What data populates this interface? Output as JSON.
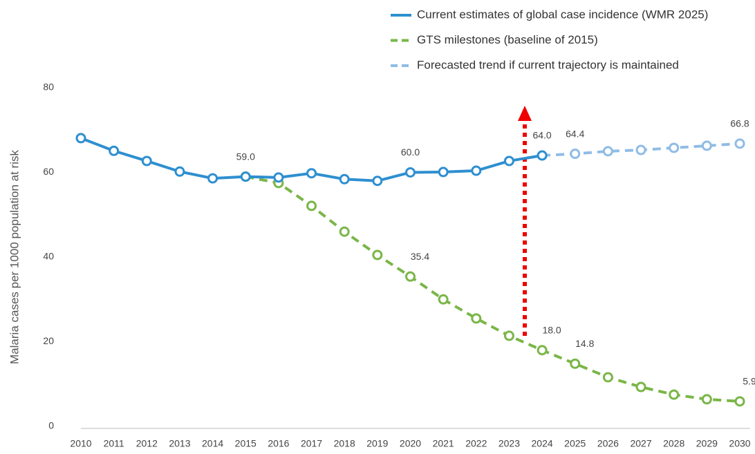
{
  "chart_data": {
    "type": "line",
    "ylabel": "Malaria cases per 1000 population at risk",
    "x": [
      2010,
      2011,
      2012,
      2013,
      2014,
      2015,
      2016,
      2017,
      2018,
      2019,
      2020,
      2021,
      2022,
      2023,
      2024,
      2025,
      2026,
      2027,
      2028,
      2029,
      2030
    ],
    "xlim": [
      2010,
      2030
    ],
    "xticks": [
      2010,
      2011,
      2012,
      2013,
      2014,
      2015,
      2016,
      2017,
      2018,
      2019,
      2020,
      2021,
      2022,
      2023,
      2024,
      2025,
      2026,
      2027,
      2028,
      2029,
      2030
    ],
    "ylim": [
      0,
      80
    ],
    "yticks": [
      0,
      20,
      40,
      60,
      80
    ],
    "grid": false,
    "legend": "top-right",
    "series": [
      {
        "name": "Current estimates of global case incidence (WMR 2025)",
        "color": "#2e8fd0",
        "dash": false,
        "values": [
          68.1,
          65.1,
          62.7,
          60.2,
          58.6,
          59.0,
          58.8,
          59.8,
          58.4,
          58.0,
          60.0,
          60.1,
          60.4,
          62.7,
          64.0,
          null,
          null,
          null,
          null,
          null,
          null
        ],
        "value_labels": [
          null,
          null,
          null,
          null,
          null,
          "59.0",
          null,
          null,
          null,
          null,
          "60.0",
          null,
          null,
          null,
          "64.0",
          null,
          null,
          null,
          null,
          null,
          null
        ]
      },
      {
        "name": "GTS milestones (baseline of 2015)",
        "color": "#7ab648",
        "dash": true,
        "values": [
          null,
          null,
          null,
          null,
          null,
          59.0,
          57.5,
          52.1,
          46.0,
          40.5,
          35.4,
          30.0,
          25.5,
          21.4,
          18.0,
          14.8,
          11.6,
          9.3,
          7.5,
          6.4,
          5.9
        ],
        "value_labels": [
          null,
          null,
          null,
          null,
          null,
          null,
          null,
          null,
          null,
          null,
          "35.4",
          null,
          null,
          null,
          "18.0",
          "14.8",
          null,
          null,
          null,
          null,
          "5.9"
        ]
      },
      {
        "name": "Forecasted trend if current trajectory is maintained",
        "color": "#8fbce6",
        "dash": true,
        "values": [
          null,
          null,
          null,
          null,
          null,
          null,
          null,
          null,
          null,
          null,
          null,
          null,
          null,
          null,
          64.0,
          64.4,
          65.0,
          65.3,
          65.8,
          66.3,
          66.8
        ],
        "value_labels": [
          null,
          null,
          null,
          null,
          null,
          null,
          null,
          null,
          null,
          null,
          null,
          null,
          null,
          null,
          null,
          "64.4",
          null,
          null,
          null,
          null,
          "66.8"
        ]
      }
    ]
  }
}
